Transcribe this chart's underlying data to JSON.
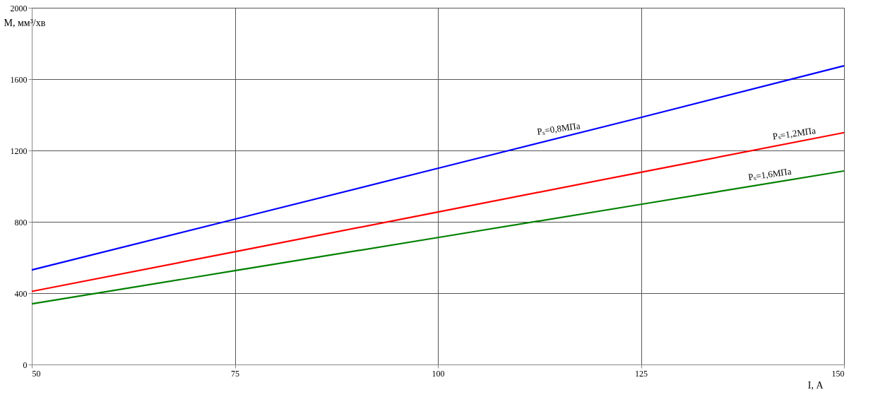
{
  "chart_data": {
    "type": "line",
    "xlabel": "I, А",
    "ylabel": "M, мм³/хв",
    "x": [
      50,
      75,
      100,
      125,
      150
    ],
    "series": [
      {
        "color": "#0000ff",
        "values": [
          530,
          815,
          1100,
          1385,
          1675
        ]
      },
      {
        "color": "#ff0000",
        "values": [
          410,
          632,
          855,
          1078,
          1300
        ]
      },
      {
        "color": "#008000",
        "values": [
          340,
          526,
          712,
          898,
          1085
        ]
      }
    ],
    "xlim": [
      50,
      150
    ],
    "xticks": [
      50,
      75,
      100,
      125,
      150
    ],
    "ylim": [
      0,
      2000
    ],
    "yticks": [
      0,
      400,
      800,
      1200,
      1600,
      2000
    ],
    "annotations": [
      {
        "text": "Pₛ=0,8МПа",
        "x": 115,
        "y": 1274
      },
      {
        "text": "Pₛ=1,2МПа",
        "x": 144,
        "y": 1247
      },
      {
        "text": "Pₛ=1,6МПа",
        "x": 141,
        "y": 1018
      }
    ],
    "grid": true,
    "legend": false,
    "marker": "none",
    "line_style": "solid"
  }
}
